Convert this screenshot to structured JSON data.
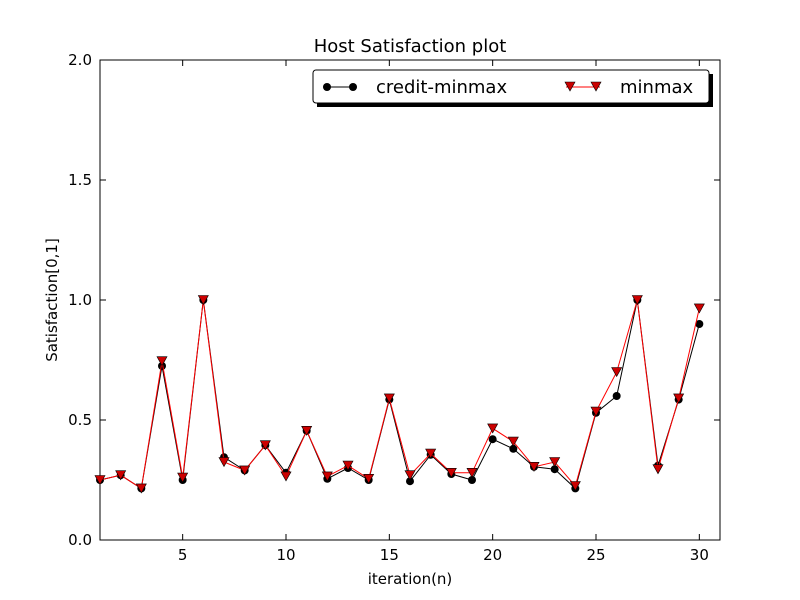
{
  "chart_data": {
    "type": "line",
    "title": "Host Satisfaction plot",
    "xlabel": "iteration(n)",
    "ylabel": "Satisfaction[0,1]",
    "xlim": [
      1,
      31
    ],
    "ylim": [
      0,
      2.0
    ],
    "xticks": [
      5,
      10,
      15,
      20,
      25,
      30
    ],
    "yticks": [
      0.0,
      0.5,
      1.0,
      1.5,
      2.0
    ],
    "xtick_labels": [
      "5",
      "10",
      "15",
      "20",
      "25",
      "30"
    ],
    "ytick_labels": [
      "0.0",
      "0.5",
      "1.0",
      "1.5",
      "2.0"
    ],
    "grid": false,
    "legend_position": "top-right",
    "x": [
      1,
      2,
      3,
      4,
      5,
      6,
      7,
      8,
      9,
      10,
      11,
      12,
      13,
      14,
      15,
      16,
      17,
      18,
      19,
      20,
      21,
      22,
      23,
      24,
      25,
      26,
      27,
      28,
      29,
      30
    ],
    "series": [
      {
        "name": "credit-minmax",
        "color": "#000000",
        "marker": "circle",
        "values": [
          0.25,
          0.27,
          0.215,
          0.725,
          0.25,
          1.0,
          0.345,
          0.29,
          0.395,
          0.28,
          0.455,
          0.255,
          0.3,
          0.25,
          0.585,
          0.245,
          0.355,
          0.275,
          0.25,
          0.42,
          0.38,
          0.305,
          0.295,
          0.215,
          0.53,
          0.6,
          1.0,
          0.31,
          0.585,
          0.9
        ]
      },
      {
        "name": "minmax",
        "color": "#ff0000",
        "marker": "triangle-down",
        "values": [
          0.25,
          0.27,
          0.215,
          0.745,
          0.26,
          1.0,
          0.325,
          0.29,
          0.395,
          0.265,
          0.455,
          0.265,
          0.31,
          0.255,
          0.59,
          0.27,
          0.36,
          0.28,
          0.28,
          0.465,
          0.41,
          0.305,
          0.325,
          0.225,
          0.535,
          0.7,
          1.0,
          0.295,
          0.59,
          0.965
        ]
      }
    ]
  }
}
